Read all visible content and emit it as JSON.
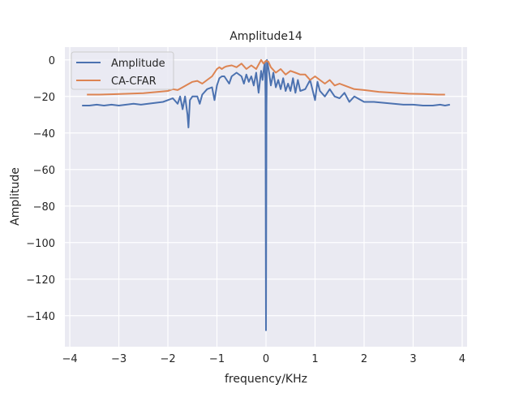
{
  "chart_data": {
    "type": "line",
    "title": "Amplitude14",
    "xlabel": "frequency/KHz",
    "ylabel": "Amplitude",
    "xlim": [
      -4.1,
      4.1
    ],
    "ylim": [
      -157,
      7
    ],
    "xticks": [
      -4,
      -3,
      -2,
      -1,
      0,
      1,
      2,
      3,
      4
    ],
    "xtick_labels": [
      "−4",
      "−3",
      "−2",
      "−1",
      "0",
      "1",
      "2",
      "3",
      "4"
    ],
    "yticks": [
      0,
      -20,
      -40,
      -60,
      -80,
      -100,
      -120,
      -140
    ],
    "ytick_labels": [
      "0",
      "−20",
      "−40",
      "−60",
      "−80",
      "−100",
      "−120",
      "−140"
    ],
    "grid": true,
    "legend_position": "upper-left",
    "series": [
      {
        "name": "Amplitude",
        "color": "#4c72b0",
        "x": [
          -3.75,
          -3.6,
          -3.45,
          -3.3,
          -3.15,
          -3.0,
          -2.85,
          -2.7,
          -2.55,
          -2.4,
          -2.25,
          -2.1,
          -2.0,
          -1.9,
          -1.8,
          -1.75,
          -1.7,
          -1.65,
          -1.6,
          -1.58,
          -1.55,
          -1.5,
          -1.4,
          -1.35,
          -1.3,
          -1.2,
          -1.1,
          -1.05,
          -1.0,
          -0.95,
          -0.9,
          -0.85,
          -0.8,
          -0.75,
          -0.7,
          -0.6,
          -0.5,
          -0.45,
          -0.4,
          -0.35,
          -0.3,
          -0.25,
          -0.2,
          -0.15,
          -0.1,
          -0.07,
          -0.04,
          -0.02,
          -0.01,
          0.0,
          0.01,
          0.02,
          0.04,
          0.07,
          0.1,
          0.15,
          0.2,
          0.25,
          0.3,
          0.35,
          0.4,
          0.45,
          0.5,
          0.55,
          0.6,
          0.65,
          0.7,
          0.8,
          0.9,
          1.0,
          1.05,
          1.1,
          1.2,
          1.3,
          1.4,
          1.5,
          1.6,
          1.7,
          1.8,
          2.0,
          2.2,
          2.4,
          2.6,
          2.8,
          3.0,
          3.2,
          3.4,
          3.55,
          3.65,
          3.75
        ],
        "y": [
          -25,
          -25,
          -24.5,
          -25,
          -24.5,
          -25,
          -24.5,
          -24,
          -24.5,
          -24,
          -23.5,
          -23,
          -22,
          -21,
          -24,
          -20,
          -27,
          -20,
          -30,
          -37,
          -22,
          -20,
          -20,
          -24,
          -19,
          -16,
          -15,
          -22,
          -14,
          -10,
          -9,
          -9,
          -11,
          -13,
          -9,
          -7,
          -9,
          -13,
          -8,
          -12,
          -9,
          -14,
          -7,
          -18,
          -6,
          -11,
          -4,
          -1,
          -20,
          -148,
          -25,
          0,
          -3,
          -8,
          -14,
          -7,
          -15,
          -11,
          -16,
          -10,
          -17,
          -13,
          -17,
          -10,
          -18,
          -11,
          -17,
          -16,
          -11,
          -22,
          -12,
          -17,
          -20,
          -16,
          -20,
          -21,
          -18,
          -23,
          -20,
          -23,
          -23,
          -23.5,
          -24,
          -24.5,
          -24.5,
          -25,
          -25,
          -24.5,
          -25,
          -24.5
        ]
      },
      {
        "name": "CA-CFAR",
        "color": "#dd8452",
        "x": [
          -3.65,
          -3.4,
          -3.1,
          -2.8,
          -2.5,
          -2.2,
          -2.0,
          -1.9,
          -1.8,
          -1.7,
          -1.6,
          -1.5,
          -1.4,
          -1.3,
          -1.2,
          -1.1,
          -1.0,
          -0.95,
          -0.9,
          -0.85,
          -0.8,
          -0.7,
          -0.6,
          -0.5,
          -0.4,
          -0.3,
          -0.2,
          -0.1,
          -0.05,
          0.0,
          0.05,
          0.1,
          0.2,
          0.3,
          0.4,
          0.5,
          0.6,
          0.7,
          0.8,
          0.9,
          1.0,
          1.1,
          1.2,
          1.3,
          1.4,
          1.5,
          1.6,
          1.8,
          2.0,
          2.3,
          2.6,
          2.9,
          3.2,
          3.5,
          3.65
        ],
        "y": [
          -19,
          -19,
          -18.8,
          -18.5,
          -18.2,
          -17.5,
          -17,
          -16,
          -16.5,
          -15,
          -13.5,
          -12,
          -11.5,
          -13,
          -11,
          -9,
          -5,
          -4,
          -5,
          -4,
          -3.5,
          -3,
          -4,
          -2,
          -5,
          -3,
          -5,
          0,
          -2,
          -0.5,
          -1,
          -4,
          -7,
          -5,
          -8,
          -6,
          -7,
          -8,
          -8,
          -11,
          -9,
          -11,
          -13,
          -11,
          -14,
          -13,
          -14,
          -16,
          -16.5,
          -17.5,
          -18,
          -18.5,
          -18.7,
          -19,
          -19
        ]
      }
    ]
  }
}
